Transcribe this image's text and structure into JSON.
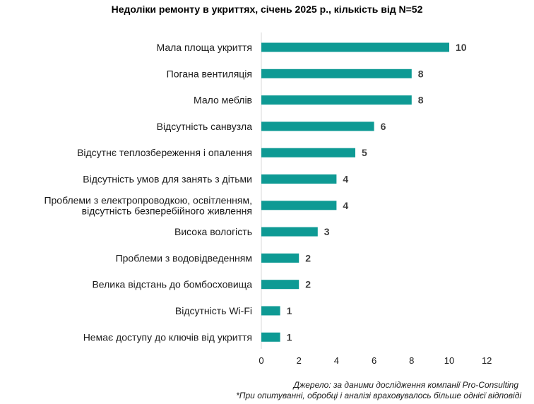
{
  "chart_data": {
    "type": "bar",
    "orientation": "horizontal",
    "title": "Недоліки ремонту в укриттях, січень 2025 р., кількість від N=52",
    "categories": [
      [
        "Мала площа укриття"
      ],
      [
        "Погана вентиляція"
      ],
      [
        "Мало меблів"
      ],
      [
        "Відсутність санвузла"
      ],
      [
        "Відсутнє теплозбереження і опалення"
      ],
      [
        "Відсутність умов для занять з дітьми"
      ],
      [
        "Проблеми з електропроводкою, освітленням,",
        "відсутність безперебійного живлення"
      ],
      [
        "Висока вологість"
      ],
      [
        "Проблеми з водовідведенням"
      ],
      [
        "Велика відстань до бомбосховища"
      ],
      [
        "Відсутність Wi-Fi"
      ],
      [
        "Немає доступу до ключів від укриття"
      ]
    ],
    "values": [
      10,
      8,
      8,
      6,
      5,
      4,
      4,
      3,
      2,
      2,
      1,
      1
    ],
    "xlim": [
      0,
      12
    ],
    "xticks": [
      0,
      2,
      4,
      6,
      8,
      10,
      12
    ],
    "bar_color": "#0e9a94",
    "grid": false,
    "data_labels": true
  },
  "notes": {
    "source": "Джерело: за даними дослідження компанії Pro-Consulting",
    "footnote": "*При опитуванні, обробці і аналізі враховувалось більше однієї відповіді"
  }
}
